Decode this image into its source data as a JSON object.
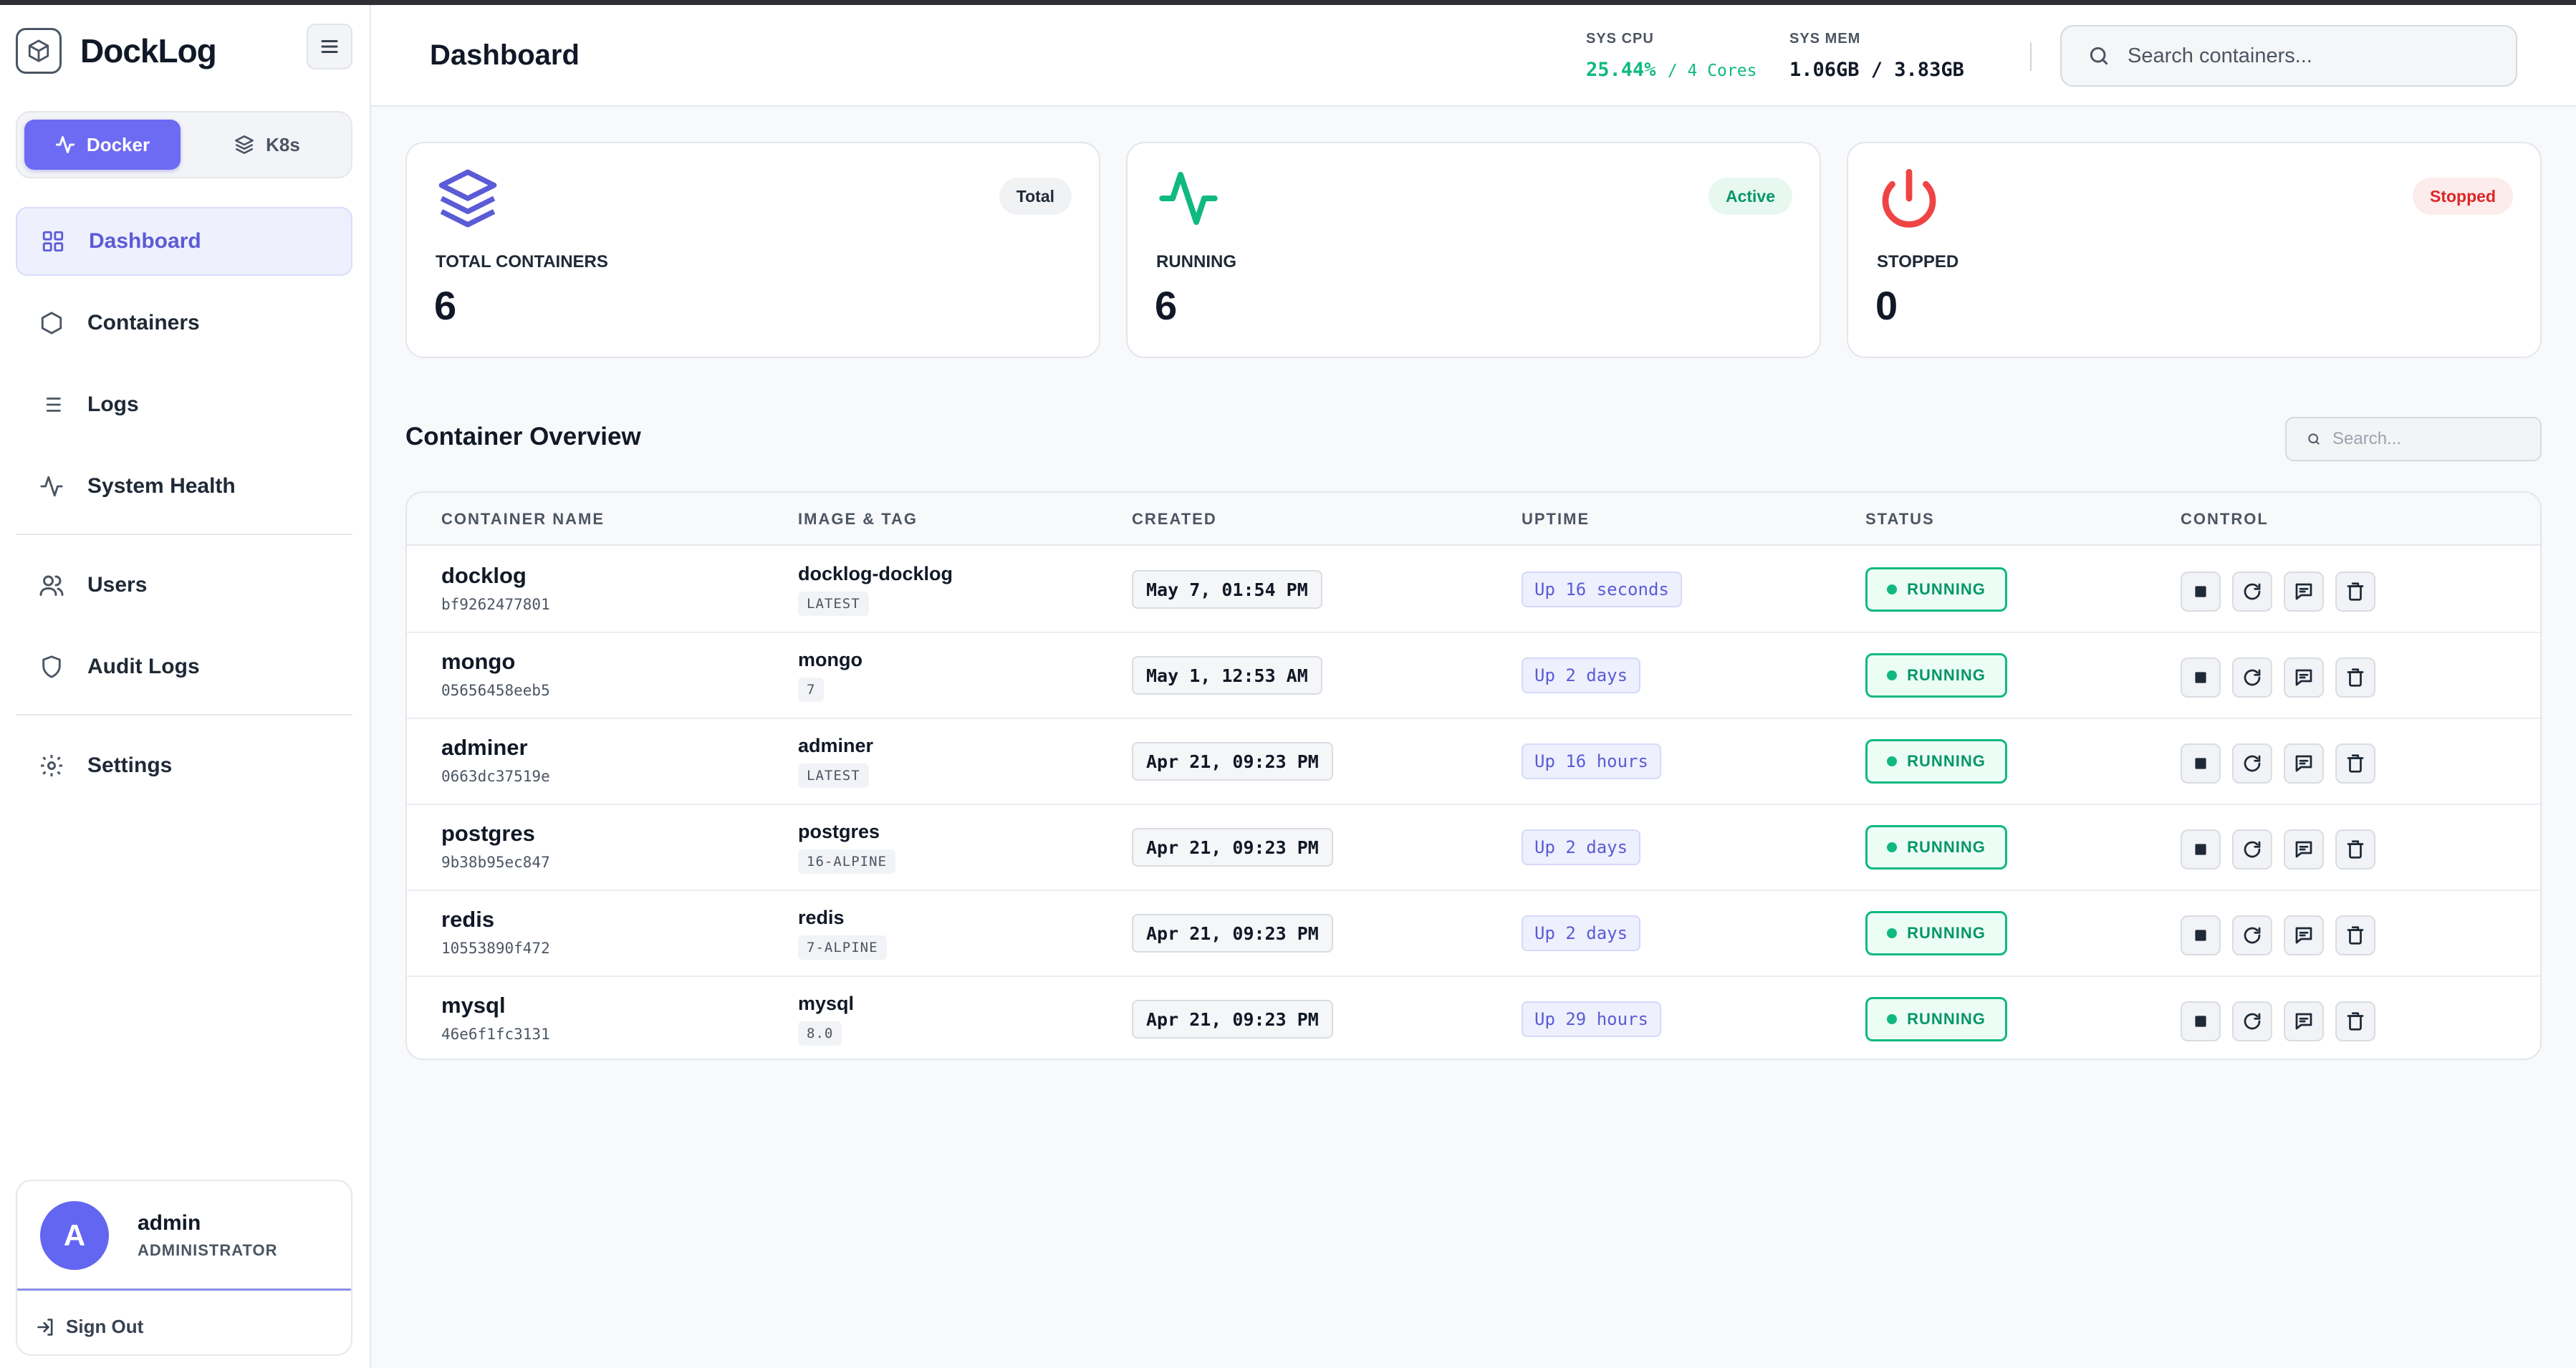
{
  "app": {
    "name": "DockLog"
  },
  "sidebar": {
    "modes": [
      {
        "label": "Docker"
      },
      {
        "label": "K8s"
      }
    ],
    "items": [
      {
        "label": "Dashboard",
        "icon": "grid-icon"
      },
      {
        "label": "Containers",
        "icon": "hexagon-icon"
      },
      {
        "label": "Logs",
        "icon": "list-icon"
      },
      {
        "label": "System Health",
        "icon": "activity-icon"
      },
      {
        "label": "Users",
        "icon": "users-icon"
      },
      {
        "label": "Audit Logs",
        "icon": "shield-icon"
      },
      {
        "label": "Settings",
        "icon": "gear-icon"
      }
    ],
    "user": {
      "initial": "A",
      "name": "admin",
      "role": "ADMINISTRATOR"
    },
    "signout_label": "Sign Out"
  },
  "header": {
    "title": "Dashboard",
    "cpu": {
      "label": "SYS CPU",
      "value": "25.44%",
      "sub": "/ 4 Cores"
    },
    "mem": {
      "label": "SYS MEM",
      "value": "1.06GB / 3.83GB"
    },
    "search_placeholder": "Search containers..."
  },
  "stats": [
    {
      "label": "TOTAL CONTAINERS",
      "value": "6",
      "badge": "Total",
      "color": "#5b5bd6"
    },
    {
      "label": "RUNNING",
      "value": "6",
      "badge": "Active",
      "color": "#10b981"
    },
    {
      "label": "STOPPED",
      "value": "0",
      "badge": "Stopped",
      "color": "#ef4444"
    }
  ],
  "overview": {
    "title": "Container Overview",
    "search_placeholder": "Search...",
    "columns": [
      "CONTAINER NAME",
      "IMAGE & TAG",
      "CREATED",
      "UPTIME",
      "STATUS",
      "CONTROL"
    ],
    "rows": [
      {
        "name": "docklog",
        "id": "bf9262477801",
        "image": "docklog-docklog",
        "tag": "LATEST",
        "created": "May 7, 01:54 PM",
        "uptime": "Up 16 seconds",
        "status": "RUNNING"
      },
      {
        "name": "mongo",
        "id": "05656458eeb5",
        "image": "mongo",
        "tag": "7",
        "created": "May 1, 12:53 AM",
        "uptime": "Up 2 days",
        "status": "RUNNING"
      },
      {
        "name": "adminer",
        "id": "0663dc37519e",
        "image": "adminer",
        "tag": "LATEST",
        "created": "Apr 21, 09:23 PM",
        "uptime": "Up 16 hours",
        "status": "RUNNING"
      },
      {
        "name": "postgres",
        "id": "9b38b95ec847",
        "image": "postgres",
        "tag": "16-ALPINE",
        "created": "Apr 21, 09:23 PM",
        "uptime": "Up 2 days",
        "status": "RUNNING"
      },
      {
        "name": "redis",
        "id": "10553890f472",
        "image": "redis",
        "tag": "7-ALPINE",
        "created": "Apr 21, 09:23 PM",
        "uptime": "Up 2 days",
        "status": "RUNNING"
      },
      {
        "name": "mysql",
        "id": "46e6f1fc3131",
        "image": "mysql",
        "tag": "8.0",
        "created": "Apr 21, 09:23 PM",
        "uptime": "Up 29 hours",
        "status": "RUNNING"
      }
    ]
  }
}
